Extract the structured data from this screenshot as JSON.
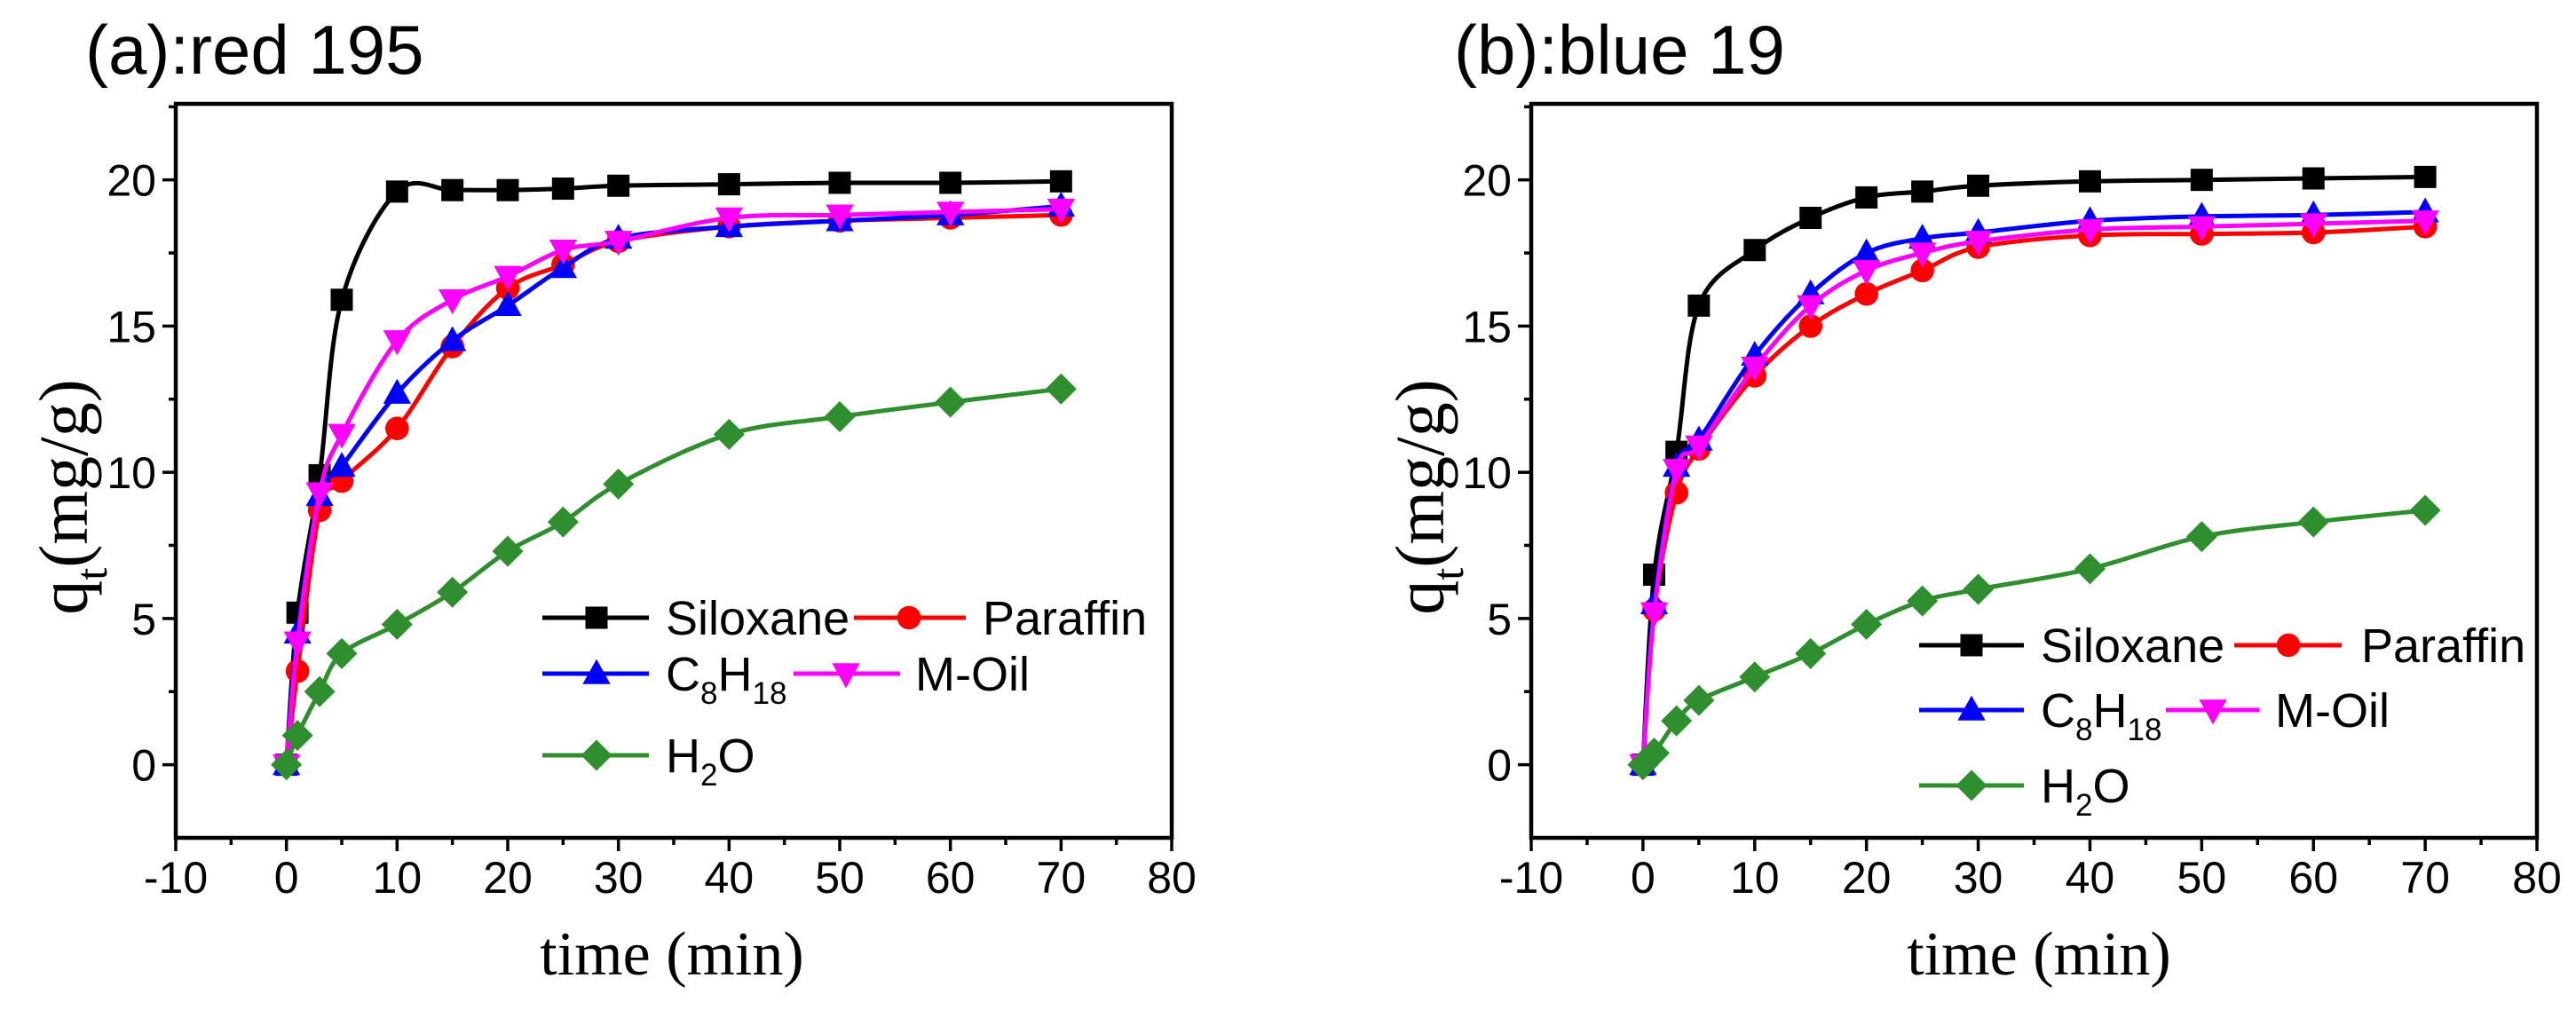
{
  "chart_data": [
    {
      "type": "line",
      "title": "(a):red 195",
      "xlabel": "time (min)",
      "ylabel_parts": [
        {
          "t": "q"
        },
        {
          "t": "t",
          "sub": true
        },
        {
          "t": "(mg/g)"
        }
      ],
      "xlim": [
        -10,
        80
      ],
      "ylim": [
        -2.5,
        22.6
      ],
      "xticks": [
        -10,
        0,
        10,
        20,
        30,
        40,
        50,
        60,
        70,
        80
      ],
      "yticks": [
        0,
        5,
        10,
        15,
        20
      ],
      "legend": "lower-right",
      "x": [
        0,
        1,
        3,
        5,
        10,
        15,
        20,
        25,
        30,
        40,
        50,
        60,
        70
      ],
      "series": [
        {
          "name_parts": [
            {
              "t": "Siloxane"
            }
          ],
          "color": "#000000",
          "marker": "square",
          "values": [
            0,
            5.2,
            9.9,
            15.9,
            19.6,
            19.65,
            19.65,
            19.7,
            19.8,
            19.85,
            19.9,
            19.9,
            19.95
          ]
        },
        {
          "name_parts": [
            {
              "t": "Paraffin"
            }
          ],
          "color": "#ff0000",
          "marker": "circle",
          "values": [
            0,
            3.2,
            8.7,
            9.7,
            11.5,
            14.3,
            16.3,
            17.1,
            17.9,
            18.4,
            18.6,
            18.7,
            18.8
          ]
        },
        {
          "name_parts": [
            {
              "t": "C"
            },
            {
              "t": "8",
              "sub": true
            },
            {
              "t": "H"
            },
            {
              "t": "18",
              "sub": true
            }
          ],
          "color": "#0000ff",
          "marker": "triangle-up",
          "values": [
            0,
            4.5,
            9.2,
            10.2,
            12.7,
            14.5,
            15.7,
            17.0,
            18.0,
            18.4,
            18.6,
            18.8,
            19.1
          ]
        },
        {
          "name_parts": [
            {
              "t": "M-Oil"
            }
          ],
          "color": "#ff00ff",
          "marker": "triangle-down",
          "values": [
            0,
            4.2,
            9.3,
            11.3,
            14.5,
            15.9,
            16.7,
            17.6,
            17.9,
            18.7,
            18.8,
            18.9,
            19.0
          ]
        },
        {
          "name_parts": [
            {
              "t": "H"
            },
            {
              "t": "2",
              "sub": true
            },
            {
              "t": "O"
            }
          ],
          "color": "#2f8f2f",
          "marker": "diamond",
          "values": [
            0,
            1.0,
            2.5,
            3.8,
            4.8,
            5.9,
            7.3,
            8.3,
            9.6,
            11.3,
            11.9,
            12.4,
            12.85
          ]
        }
      ]
    },
    {
      "type": "line",
      "title": "(b):blue 19",
      "xlabel": "time (min)",
      "ylabel_parts": [
        {
          "t": "q"
        },
        {
          "t": "t",
          "sub": true
        },
        {
          "t": "(mg/g)"
        }
      ],
      "xlim": [
        -10,
        80
      ],
      "ylim": [
        -2.5,
        22.6
      ],
      "xticks": [
        -10,
        0,
        10,
        20,
        30,
        40,
        50,
        60,
        70,
        80
      ],
      "yticks": [
        0,
        5,
        10,
        15,
        20
      ],
      "legend": "lower-right",
      "x": [
        0,
        1,
        3,
        5,
        10,
        15,
        20,
        25,
        30,
        40,
        50,
        60,
        70
      ],
      "series": [
        {
          "name_parts": [
            {
              "t": "Siloxane"
            }
          ],
          "color": "#000000",
          "marker": "square",
          "values": [
            0,
            6.5,
            10.7,
            15.7,
            17.6,
            18.7,
            19.4,
            19.6,
            19.8,
            19.95,
            20.0,
            20.05,
            20.1
          ]
        },
        {
          "name_parts": [
            {
              "t": "Paraffin"
            }
          ],
          "color": "#ff0000",
          "marker": "circle",
          "values": [
            0,
            5.3,
            9.3,
            10.8,
            13.3,
            15.0,
            16.1,
            16.9,
            17.7,
            18.1,
            18.15,
            18.2,
            18.4
          ]
        },
        {
          "name_parts": [
            {
              "t": "C"
            },
            {
              "t": "8",
              "sub": true
            },
            {
              "t": "H"
            },
            {
              "t": "18",
              "sub": true
            }
          ],
          "color": "#0000ff",
          "marker": "triangle-up",
          "values": [
            0,
            5.5,
            10.2,
            11.1,
            14.0,
            16.1,
            17.5,
            18.0,
            18.2,
            18.6,
            18.75,
            18.8,
            18.9
          ]
        },
        {
          "name_parts": [
            {
              "t": "M-Oil"
            }
          ],
          "color": "#ff00ff",
          "marker": "triangle-down",
          "values": [
            0,
            5.2,
            10.1,
            10.9,
            13.6,
            15.7,
            16.9,
            17.5,
            17.9,
            18.3,
            18.4,
            18.5,
            18.6
          ]
        },
        {
          "name_parts": [
            {
              "t": "H"
            },
            {
              "t": "2",
              "sub": true
            },
            {
              "t": "O"
            }
          ],
          "color": "#2f8f2f",
          "marker": "diamond",
          "values": [
            0,
            0.4,
            1.5,
            2.2,
            3.0,
            3.8,
            4.8,
            5.6,
            6.0,
            6.7,
            7.8,
            8.3,
            8.7
          ]
        }
      ]
    }
  ]
}
